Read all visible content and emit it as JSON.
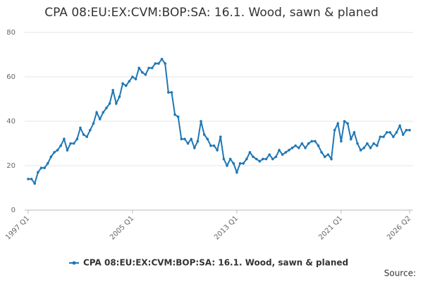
{
  "chart_data": {
    "type": "line",
    "title": "CPA 08:EU:EX:CVM:BOP:SA: 16.1. Wood, sawn & planed",
    "source_label": "Source:",
    "categories": [
      "1997 Q1",
      null,
      null,
      null,
      null,
      null,
      null,
      null,
      null,
      null,
      null,
      null,
      null,
      null,
      null,
      null,
      null,
      null,
      null,
      null,
      null,
      null,
      null,
      null,
      null,
      null,
      null,
      null,
      null,
      null,
      null,
      null,
      "2005 Q1",
      null,
      null,
      null,
      null,
      null,
      null,
      null,
      null,
      null,
      null,
      null,
      null,
      null,
      null,
      null,
      null,
      null,
      null,
      null,
      null,
      null,
      null,
      null,
      null,
      null,
      null,
      null,
      null,
      null,
      null,
      null,
      "2013 Q1",
      null,
      null,
      null,
      null,
      null,
      null,
      null,
      null,
      null,
      null,
      null,
      null,
      null,
      null,
      null,
      null,
      null,
      null,
      null,
      null,
      null,
      null,
      null,
      null,
      null,
      null,
      null,
      null,
      null,
      null,
      null,
      "2021 Q1",
      null,
      null,
      null,
      null,
      null,
      null,
      null,
      null,
      null,
      null,
      null,
      null,
      null,
      null,
      null,
      null,
      null,
      null,
      null,
      null,
      "2026 Q2"
    ],
    "series": [
      {
        "name": "CPA 08:EU:EX:CVM:BOP:SA: 16.1. Wood, sawn & planed",
        "color": "#1f77b4",
        "values": [
          14,
          14,
          12,
          17,
          19,
          19,
          21,
          24,
          26,
          27,
          29,
          32,
          27,
          30,
          30,
          32,
          37,
          34,
          33,
          36,
          39,
          44,
          41,
          44,
          46,
          48,
          54,
          48,
          51,
          57,
          56,
          58,
          60,
          59,
          64,
          62,
          61,
          64,
          64,
          66,
          66,
          68,
          66,
          53,
          53,
          43,
          42,
          32,
          32,
          30,
          32,
          28,
          31,
          40,
          34,
          32,
          29,
          29,
          27,
          33,
          23,
          20,
          23,
          21,
          17,
          21,
          21,
          23,
          26,
          24,
          23,
          22,
          23,
          23,
          25,
          23,
          24,
          27,
          25,
          26,
          27,
          28,
          29,
          28,
          30,
          28,
          30,
          31,
          31,
          29,
          26,
          24,
          25,
          23,
          36,
          39,
          31,
          40,
          39,
          32,
          35,
          30,
          27,
          28,
          30,
          28,
          30,
          29,
          33,
          33,
          35,
          35,
          33,
          35,
          38,
          34,
          36,
          36
        ]
      }
    ],
    "ylim": [
      0,
      80
    ],
    "yticks": [
      0,
      20,
      40,
      60,
      80
    ],
    "grid": true
  }
}
